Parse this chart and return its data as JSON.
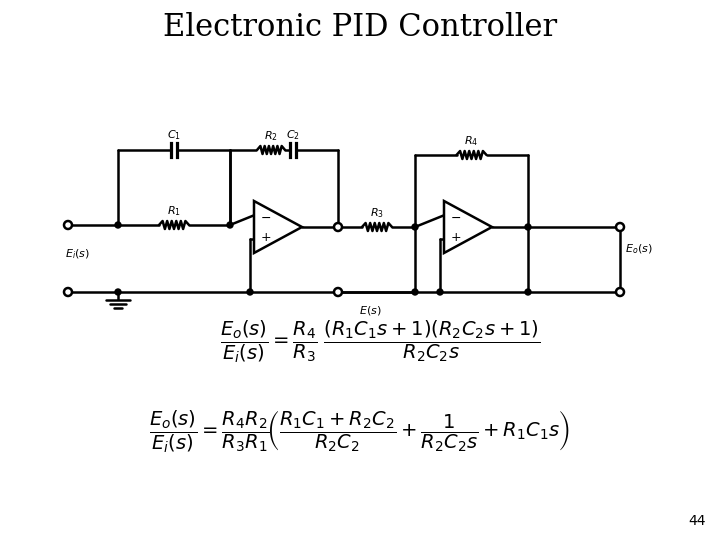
{
  "title": "Electronic PID Controller",
  "title_fontsize": 22,
  "background_color": "#ffffff",
  "page_number": "44",
  "eq_fontsize": 14
}
